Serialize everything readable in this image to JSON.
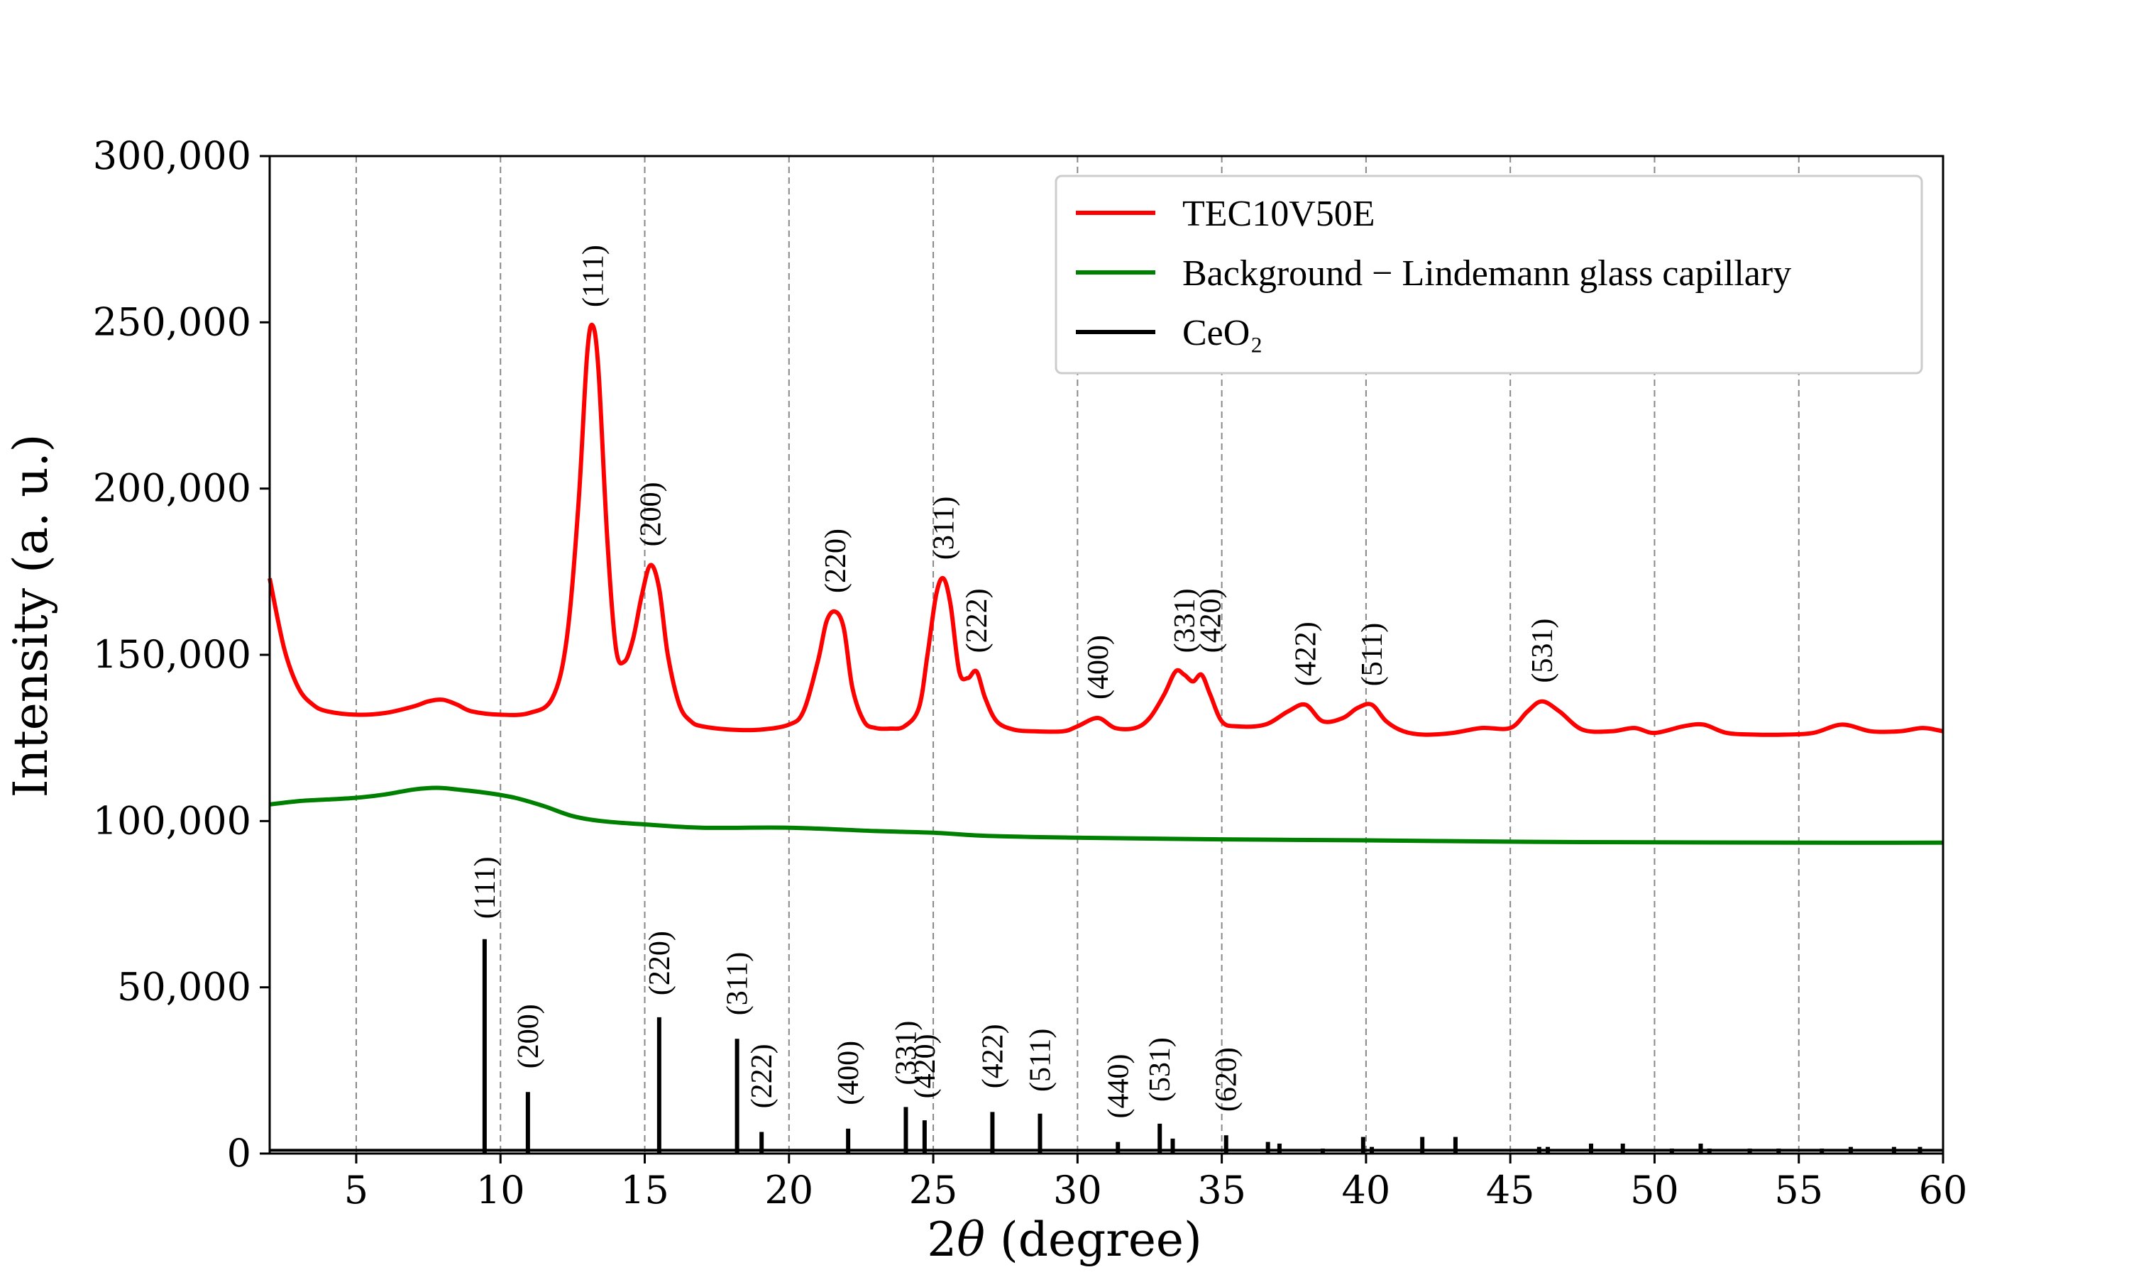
{
  "chart_data": {
    "type": "line",
    "xlabel": "2θ (degree)",
    "ylabel": "Intensity (a. u.)",
    "xlim": [
      2,
      60
    ],
    "ylim": [
      0,
      300000
    ],
    "x_ticks": [
      5,
      10,
      15,
      20,
      25,
      30,
      35,
      40,
      45,
      50,
      55,
      60
    ],
    "y_ticks": [
      0,
      50000,
      100000,
      150000,
      200000,
      250000,
      300000
    ],
    "y_tick_labels": [
      "0",
      "50,000",
      "100,000",
      "150,000",
      "200,000",
      "250,000",
      "300,000"
    ],
    "grid": "vertical dashed at x ticks",
    "legend_position": "top-right",
    "series": [
      {
        "name": "TEC10V50E",
        "color": "#ff0000",
        "x": [
          2,
          2.5,
          3,
          3.5,
          4,
          5,
          6,
          7,
          7.5,
          8,
          8.5,
          9,
          10,
          11,
          11.8,
          12.3,
          12.7,
          13,
          13.2,
          13.4,
          13.7,
          14,
          14.3,
          14.6,
          14.9,
          15.2,
          15.5,
          15.8,
          16.2,
          16.6,
          17,
          18,
          19,
          20,
          20.5,
          21,
          21.3,
          21.6,
          21.9,
          22.2,
          22.6,
          23,
          23.5,
          24,
          24.5,
          24.8,
          25.1,
          25.35,
          25.6,
          25.9,
          26.2,
          26.5,
          26.8,
          27.2,
          27.8,
          28.5,
          29.5,
          30,
          30.7,
          31.3,
          32,
          32.5,
          33,
          33.4,
          33.7,
          34,
          34.3,
          34.6,
          35,
          35.5,
          36.5,
          37.3,
          37.9,
          38.5,
          39.2,
          39.7,
          40.2,
          40.7,
          41.3,
          42,
          43,
          44,
          45,
          45.6,
          46.1,
          46.7,
          47.5,
          48.5,
          49.3,
          50,
          51,
          51.7,
          52.5,
          53.5,
          54.5,
          55.5,
          56.5,
          57.5,
          58.5,
          59.3,
          60
        ],
        "y": [
          173000,
          152000,
          140000,
          135000,
          133000,
          132000,
          132500,
          134500,
          136000,
          136500,
          135000,
          133000,
          132000,
          132500,
          137000,
          155000,
          195000,
          240000,
          249000,
          235000,
          185000,
          152000,
          148000,
          155000,
          168000,
          177000,
          170000,
          150000,
          135000,
          130000,
          128500,
          127500,
          127500,
          129000,
          133000,
          148000,
          160000,
          163000,
          158000,
          140000,
          130000,
          128000,
          127800,
          128500,
          134000,
          150000,
          168000,
          173000,
          165000,
          145000,
          143000,
          145000,
          137000,
          130000,
          127500,
          127000,
          127000,
          128500,
          131000,
          128000,
          128000,
          131000,
          138000,
          145000,
          144000,
          142000,
          144000,
          138000,
          130000,
          128500,
          129000,
          133000,
          135000,
          130000,
          131000,
          134000,
          135000,
          130000,
          127000,
          126000,
          126500,
          128000,
          128000,
          133000,
          136000,
          133000,
          127500,
          127000,
          128000,
          126500,
          128500,
          129000,
          126500,
          126000,
          126000,
          126500,
          129000,
          127000,
          127000,
          128000,
          127000
        ]
      },
      {
        "name": "Background − Lindemann glass capillary",
        "color": "#008000",
        "x": [
          2,
          3,
          4,
          5,
          6,
          7,
          7.8,
          8.5,
          9.5,
          10.5,
          11.5,
          12.5,
          13.5,
          15,
          17,
          20,
          23,
          25,
          27,
          30,
          35,
          40,
          45,
          50,
          55,
          60
        ],
        "y": [
          105000,
          106000,
          106500,
          107000,
          108000,
          109500,
          110000,
          109500,
          108500,
          107000,
          104500,
          101500,
          100000,
          99000,
          98000,
          98000,
          97000,
          96500,
          95500,
          95000,
          94500,
          94200,
          93800,
          93600,
          93500,
          93500
        ]
      },
      {
        "name": "CeO₂",
        "color": "#000000",
        "type": "stick",
        "baseline": 1000,
        "x": [
          9.45,
          10.95,
          15.5,
          18.2,
          19.05,
          22.05,
          24.05,
          24.7,
          27.05,
          28.7,
          31.4,
          32.85,
          33.3,
          35.15,
          36.6,
          37.0,
          38.5,
          39.9,
          40.2,
          41.95,
          43.1,
          46.0,
          46.3,
          47.8,
          48.9,
          50.6,
          51.6,
          51.9,
          53.3,
          54.3,
          55.8,
          56.8,
          58.3,
          59.2
        ],
        "y": [
          64500,
          18500,
          41000,
          34500,
          6500,
          7500,
          14000,
          10000,
          12500,
          12000,
          3500,
          9000,
          4500,
          5500,
          3500,
          3000,
          1500,
          5000,
          2000,
          5000,
          5000,
          2000,
          2000,
          3000,
          3000,
          1500,
          3000,
          1500,
          1500,
          1500,
          1500,
          2000,
          2000,
          2000
        ]
      }
    ],
    "annotations_tec": [
      {
        "text": "(111)",
        "x": 13.2,
        "y": 252000
      },
      {
        "text": "(200)",
        "x": 15.2,
        "y": 180000
      },
      {
        "text": "(220)",
        "x": 21.6,
        "y": 166000
      },
      {
        "text": "(311)",
        "x": 25.35,
        "y": 176000
      },
      {
        "text": "(222)",
        "x": 26.5,
        "y": 148000
      },
      {
        "text": "(400)",
        "x": 30.7,
        "y": 134000
      },
      {
        "text": "(331)",
        "x": 33.7,
        "y": 148000
      },
      {
        "text": "(420)",
        "x": 34.6,
        "y": 148000
      },
      {
        "text": "(422)",
        "x": 37.9,
        "y": 138000
      },
      {
        "text": "(511)",
        "x": 40.2,
        "y": 138000
      },
      {
        "text": "(531)",
        "x": 46.1,
        "y": 139000
      }
    ],
    "annotations_ceo2": [
      {
        "text": "(111)",
        "x": 9.45,
        "y": 68000
      },
      {
        "text": "(200)",
        "x": 10.95,
        "y": 23000
      },
      {
        "text": "(220)",
        "x": 15.5,
        "y": 45000
      },
      {
        "text": "(311)",
        "x": 18.2,
        "y": 39000
      },
      {
        "text": "(222)",
        "x": 19.05,
        "y": 11000
      },
      {
        "text": "(400)",
        "x": 22.05,
        "y": 12000
      },
      {
        "text": "(331)",
        "x": 24.05,
        "y": 18000
      },
      {
        "text": "(420)",
        "x": 24.7,
        "y": 14000
      },
      {
        "text": "(422)",
        "x": 27.05,
        "y": 17000
      },
      {
        "text": "(511)",
        "x": 28.7,
        "y": 16000
      },
      {
        "text": "(440)",
        "x": 31.4,
        "y": 8000
      },
      {
        "text": "(531)",
        "x": 32.85,
        "y": 13000
      },
      {
        "text": "(620)",
        "x": 35.15,
        "y": 10000
      }
    ]
  }
}
